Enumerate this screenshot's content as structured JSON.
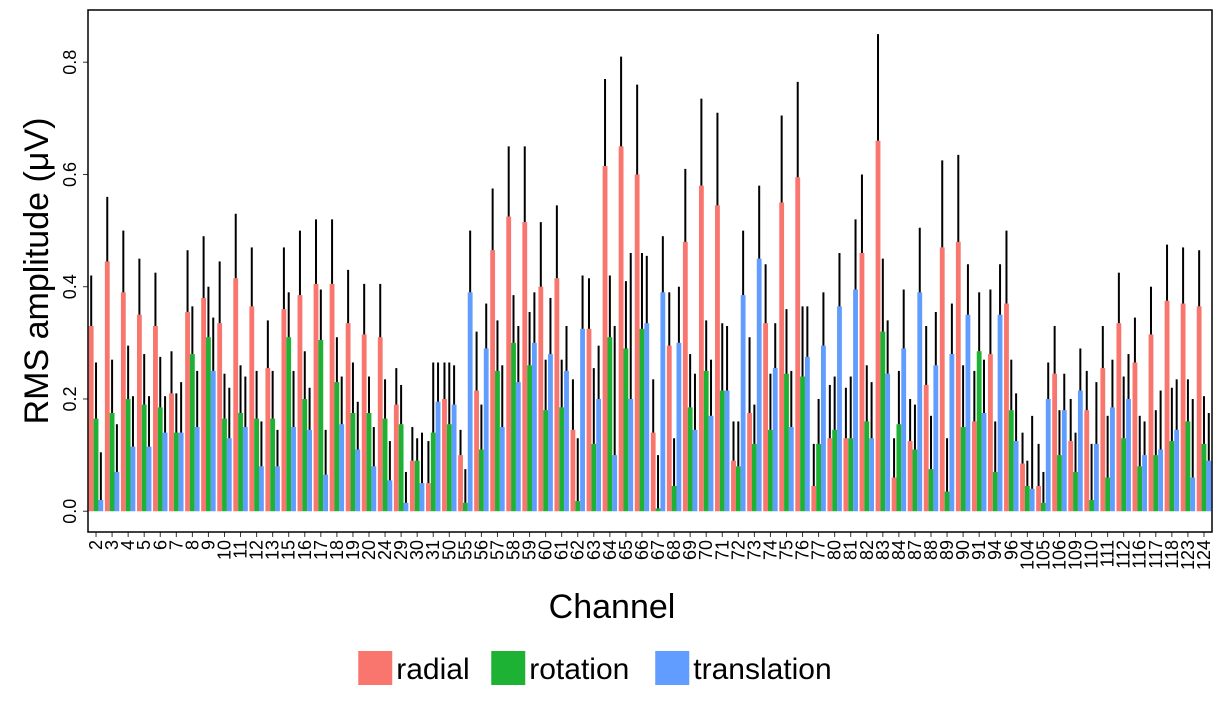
{
  "chart_data": {
    "type": "bar",
    "x_label": "Channel",
    "y_label": "RMS amplitude (μV)",
    "categories": [
      "2",
      "3",
      "4",
      "5",
      "6",
      "7",
      "8",
      "9",
      "10",
      "11",
      "12",
      "13",
      "15",
      "16",
      "17",
      "18",
      "19",
      "20",
      "24",
      "29",
      "30",
      "31",
      "50",
      "55",
      "56",
      "57",
      "58",
      "59",
      "60",
      "61",
      "62",
      "63",
      "64",
      "65",
      "66",
      "67",
      "68",
      "69",
      "70",
      "71",
      "72",
      "73",
      "74",
      "75",
      "76",
      "77",
      "80",
      "81",
      "82",
      "83",
      "84",
      "87",
      "88",
      "89",
      "90",
      "91",
      "94",
      "96",
      "104",
      "105",
      "106",
      "109",
      "110",
      "111",
      "112",
      "116",
      "117",
      "118",
      "123",
      "124"
    ],
    "series": [
      {
        "name": "radial",
        "color": "#f8766d",
        "values": [
          0.33,
          0.445,
          0.39,
          0.35,
          0.33,
          0.21,
          0.355,
          0.38,
          0.335,
          0.415,
          0.365,
          0.255,
          0.36,
          0.385,
          0.405,
          0.405,
          0.335,
          0.315,
          0.31,
          0.19,
          0.09,
          0.05,
          0.2,
          0.1,
          0.215,
          0.465,
          0.525,
          0.515,
          0.4,
          0.415,
          0.145,
          0.325,
          0.615,
          0.65,
          0.6,
          0.14,
          0.295,
          0.48,
          0.58,
          0.545,
          0.09,
          0.175,
          0.335,
          0.55,
          0.595,
          0.045,
          0.13,
          0.13,
          0.46,
          0.66,
          0.06,
          0.125,
          0.225,
          0.47,
          0.48,
          0.16,
          0.28,
          0.37,
          0.085,
          0.045,
          0.245,
          0.125,
          0.18,
          0.255,
          0.335,
          0.265,
          0.315,
          0.375,
          0.37,
          0.365
        ],
        "errors": [
          0.09,
          0.115,
          0.11,
          0.1,
          0.095,
          0.075,
          0.11,
          0.11,
          0.11,
          0.115,
          0.105,
          0.085,
          0.11,
          0.115,
          0.115,
          0.115,
          0.095,
          0.09,
          0.095,
          0.065,
          0.06,
          0.075,
          0.065,
          0.045,
          0.105,
          0.11,
          0.125,
          0.135,
          0.115,
          0.13,
          0.09,
          0.09,
          0.155,
          0.16,
          0.16,
          0.095,
          0.095,
          0.13,
          0.155,
          0.165,
          0.07,
          0.135,
          0.105,
          0.155,
          0.17,
          0.075,
          0.095,
          0.09,
          0.14,
          0.19,
          0.07,
          0.075,
          0.105,
          0.155,
          0.155,
          0.09,
          0.115,
          0.13,
          0.055,
          0.075,
          0.085,
          0.075,
          0.07,
          0.075,
          0.09,
          0.08,
          0.085,
          0.1,
          0.1,
          0.1
        ]
      },
      {
        "name": "rotation",
        "color": "#1db233",
        "values": [
          0.165,
          0.175,
          0.2,
          0.19,
          0.185,
          0.14,
          0.28,
          0.31,
          0.165,
          0.175,
          0.165,
          0.165,
          0.31,
          0.2,
          0.305,
          0.23,
          0.175,
          0.175,
          0.165,
          0.155,
          0.09,
          0.14,
          0.155,
          0.015,
          0.11,
          0.25,
          0.3,
          0.26,
          0.18,
          0.185,
          0.018,
          0.12,
          0.31,
          0.29,
          0.325,
          0.005,
          0.045,
          0.185,
          0.25,
          0.215,
          0.08,
          0.12,
          0.145,
          0.245,
          0.24,
          0.12,
          0.145,
          0.13,
          0.16,
          0.32,
          0.155,
          0.11,
          0.075,
          0.035,
          0.15,
          0.285,
          0.07,
          0.18,
          0.045,
          0.015,
          0.1,
          0.07,
          0.02,
          0.06,
          0.13,
          0.08,
          0.1,
          0.125,
          0.16,
          0.12
        ],
        "errors": [
          0.1,
          0.095,
          0.095,
          0.09,
          0.09,
          0.07,
          0.085,
          0.09,
          0.08,
          0.085,
          0.085,
          0.085,
          0.08,
          0.085,
          0.09,
          0.08,
          0.09,
          0.065,
          0.07,
          0.07,
          0.04,
          0.125,
          0.11,
          0.06,
          0.08,
          0.09,
          0.085,
          0.095,
          0.09,
          0.085,
          0.112,
          0.135,
          0.11,
          0.12,
          0.135,
          0.095,
          0.085,
          0.095,
          0.09,
          0.12,
          0.08,
          0.07,
          0.1,
          0.115,
          0.125,
          0.08,
          0.095,
          0.11,
          0.1,
          0.13,
          0.095,
          0.08,
          0.095,
          0.095,
          0.11,
          0.105,
          0.09,
          0.09,
          0.045,
          0.055,
          0.08,
          0.07,
          0.1,
          0.11,
          0.11,
          0.09,
          0.08,
          0.095,
          0.075,
          0.085
        ]
      },
      {
        "name": "translation",
        "color": "#619cff",
        "values": [
          0.02,
          0.07,
          0.115,
          0.115,
          0.14,
          0.14,
          0.15,
          0.25,
          0.13,
          0.15,
          0.08,
          0.08,
          0.15,
          0.145,
          0.065,
          0.155,
          0.11,
          0.08,
          0.055,
          0.015,
          0.05,
          0.195,
          0.19,
          0.39,
          0.29,
          0.15,
          0.23,
          0.3,
          0.28,
          0.25,
          0.325,
          0.2,
          0.1,
          0.2,
          0.335,
          0.39,
          0.3,
          0.145,
          0.17,
          0.215,
          0.385,
          0.45,
          0.255,
          0.15,
          0.275,
          0.295,
          0.365,
          0.395,
          0.13,
          0.245,
          0.29,
          0.39,
          0.26,
          0.28,
          0.35,
          0.175,
          0.35,
          0.125,
          0.04,
          0.2,
          0.18,
          0.215,
          0.12,
          0.185,
          0.2,
          0.1,
          0.11,
          0.145,
          0.06,
          0.09
        ],
        "errors": [
          0.085,
          0.085,
          0.09,
          0.09,
          0.065,
          0.09,
          0.1,
          0.095,
          0.09,
          0.09,
          0.08,
          0.065,
          0.1,
          0.075,
          0.08,
          0.085,
          0.085,
          0.07,
          0.07,
          0.055,
          0.09,
          0.07,
          0.07,
          0.11,
          0.08,
          0.11,
          0.1,
          0.09,
          0.1,
          0.08,
          0.095,
          0.095,
          0.23,
          0.26,
          0.12,
          0.1,
          0.1,
          0.1,
          0.1,
          0.115,
          0.115,
          0.13,
          0.08,
          0.1,
          0.09,
          0.095,
          0.095,
          0.125,
          0.1,
          0.095,
          0.105,
          0.115,
          0.095,
          0.09,
          0.09,
          0.095,
          0.09,
          0.085,
          0.13,
          0.065,
          0.065,
          0.075,
          0.11,
          0.085,
          0.08,
          0.06,
          0.105,
          0.09,
          0.14,
          0.085
        ]
      }
    ],
    "ylim": [
      -0.037,
      0.893
    ],
    "yticks": [
      {
        "value": 0,
        "label": "0.0"
      },
      0.2,
      0.4,
      0.6,
      0.8
    ],
    "grid": false,
    "legend": "bottom"
  }
}
